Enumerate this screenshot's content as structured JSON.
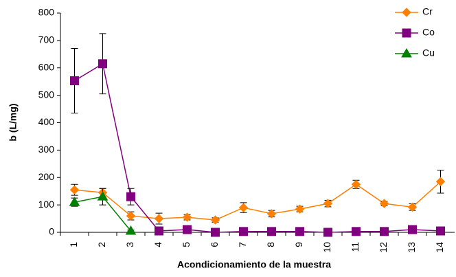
{
  "chart_data": {
    "type": "line",
    "x_label": "Acondicionamiento de la muestra",
    "y_label": "b (L/mg)",
    "categories": [
      "1",
      "2",
      "3",
      "4",
      "5",
      "6",
      "7",
      "8",
      "9",
      "10",
      "11",
      "12",
      "13",
      "14"
    ],
    "ylim": [
      0,
      800
    ],
    "yticks": [
      0,
      100,
      200,
      300,
      400,
      500,
      600,
      700,
      800
    ],
    "grid": false,
    "legend": "top-right",
    "series": [
      {
        "name": "Cr",
        "color": "#ff7f00",
        "marker": "diamond",
        "values": [
          155,
          145,
          60,
          50,
          55,
          45,
          90,
          68,
          85,
          105,
          175,
          105,
          92,
          185
        ],
        "errors": [
          20,
          15,
          15,
          20,
          10,
          8,
          18,
          12,
          10,
          12,
          15,
          8,
          12,
          42
        ]
      },
      {
        "name": "Co",
        "color": "#800080",
        "marker": "square",
        "values": [
          553,
          615,
          130,
          5,
          10,
          0,
          3,
          3,
          3,
          0,
          3,
          3,
          10,
          5
        ],
        "errors": [
          118,
          110,
          30,
          3,
          3,
          3,
          3,
          3,
          3,
          3,
          3,
          3,
          3,
          3
        ]
      },
      {
        "name": "Cu",
        "color": "#008000",
        "marker": "triangle",
        "values": [
          110,
          130,
          5,
          null,
          null,
          null,
          null,
          null,
          null,
          null,
          null,
          null,
          null,
          null
        ],
        "errors": [
          15,
          30,
          3,
          null,
          null,
          null,
          null,
          null,
          null,
          null,
          null,
          null,
          null,
          null
        ]
      }
    ]
  }
}
